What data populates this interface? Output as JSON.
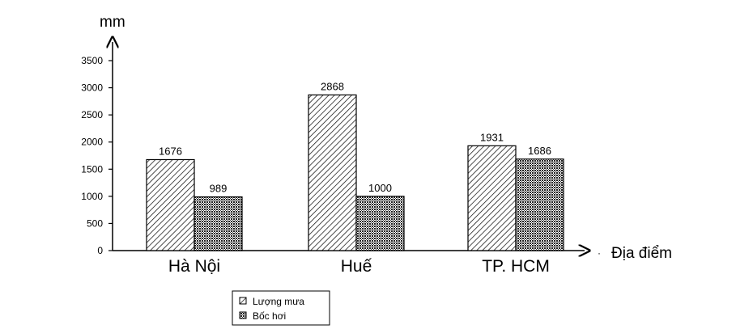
{
  "chart_data": {
    "type": "bar",
    "title": "",
    "ylabel": "mm",
    "xlabel": "Địa điểm",
    "categories": [
      "Hà Nội",
      "Huế",
      "TP. HCM"
    ],
    "series": [
      {
        "name": "Lượng mưa",
        "values": [
          1676,
          2868,
          1931
        ],
        "pattern": "diagonal-hatch"
      },
      {
        "name": "Bốc hơi",
        "values": [
          989,
          1000,
          1686
        ],
        "pattern": "dense-crosshatch"
      }
    ],
    "ylim": [
      0,
      3500
    ],
    "yticks": [
      0,
      500,
      1000,
      1500,
      2000,
      2500,
      3000,
      3500
    ],
    "grid": false,
    "legend_position": "bottom-center",
    "data_labels": true
  }
}
